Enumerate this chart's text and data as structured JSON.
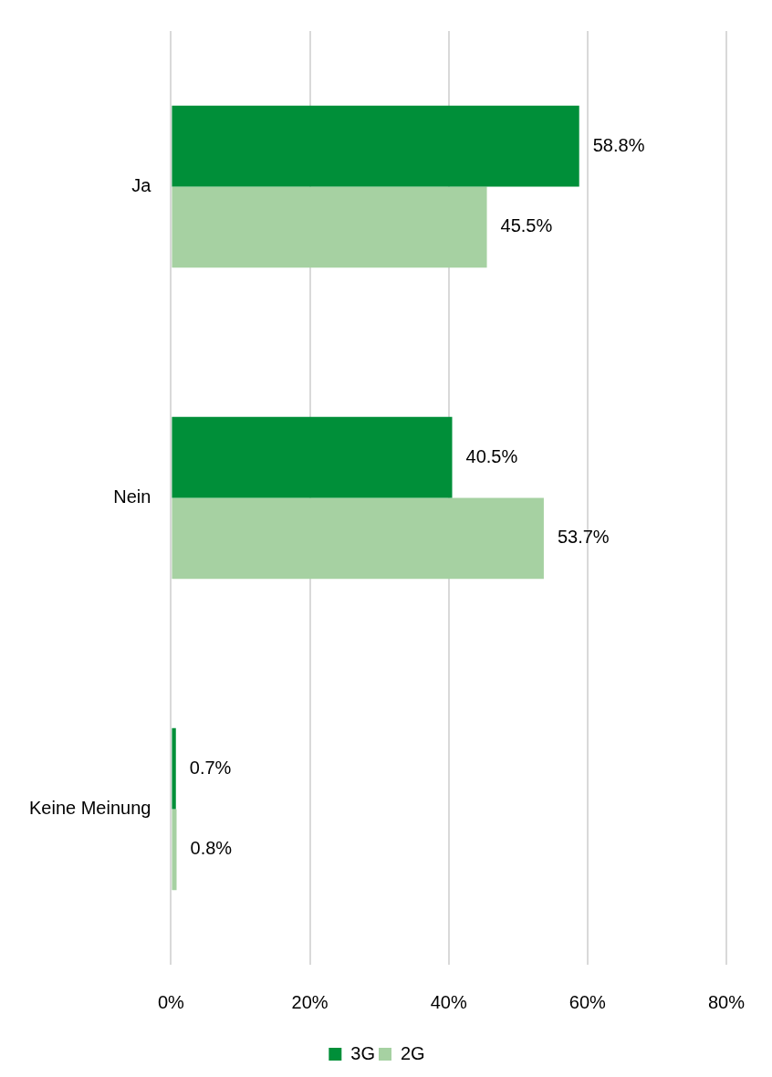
{
  "chart_data": {
    "type": "bar",
    "orientation": "horizontal",
    "categories": [
      "Ja",
      "Nein",
      "Keine Meinung"
    ],
    "series": [
      {
        "name": "3G",
        "color": "#008f39",
        "values": [
          58.8,
          40.5,
          0.7
        ],
        "value_labels": [
          "58.8%",
          "40.5%",
          "0.7%"
        ]
      },
      {
        "name": "2G",
        "color": "#a6d1a2",
        "values": [
          45.5,
          53.7,
          0.8
        ],
        "value_labels": [
          "45.5%",
          "53.7%",
          "0.8%"
        ]
      }
    ],
    "xlim": [
      0,
      80
    ],
    "xticks": [
      {
        "value": 0,
        "label": "0%"
      },
      {
        "value": 20,
        "label": "20%"
      },
      {
        "value": 40,
        "label": "40%"
      },
      {
        "value": 60,
        "label": "60%"
      },
      {
        "value": 80,
        "label": "80%"
      }
    ],
    "grid": "x",
    "legend": "bottom"
  }
}
